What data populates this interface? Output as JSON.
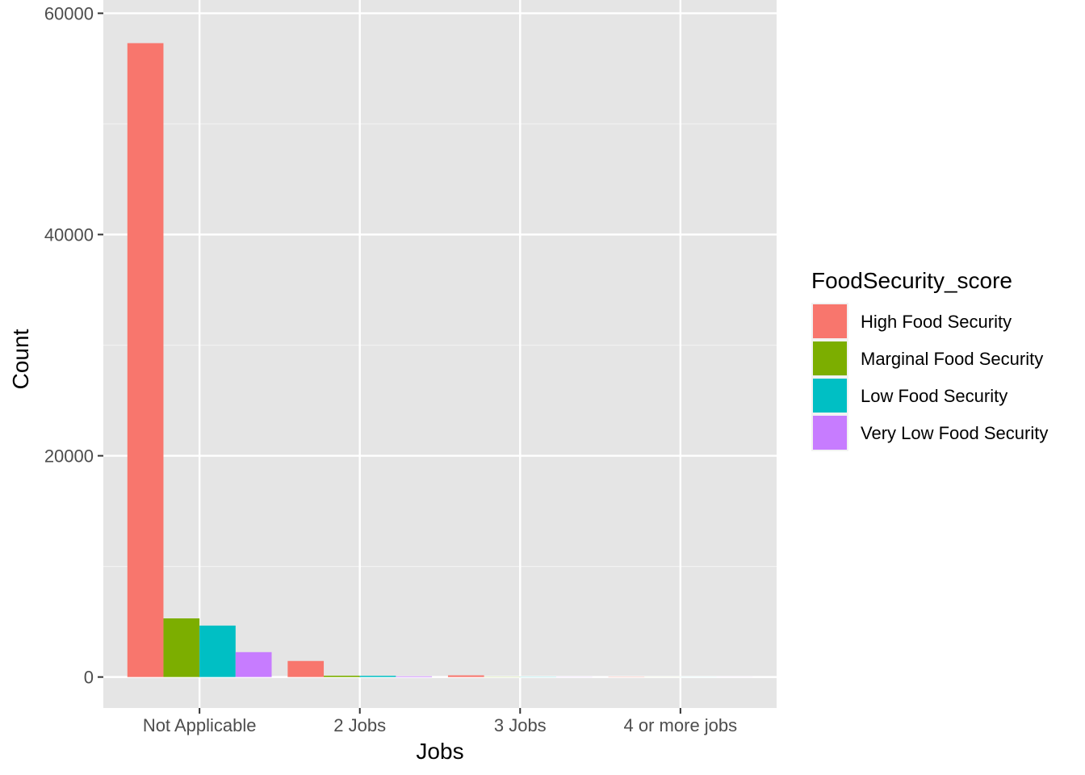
{
  "chart_data": {
    "type": "bar",
    "xlabel": "Jobs",
    "ylabel": "Count",
    "categories": [
      "Not Applicable",
      "2 Jobs",
      "3 Jobs",
      "4 or more jobs"
    ],
    "ylim": [
      -2800,
      61200
    ],
    "yticks": [
      0,
      20000,
      40000,
      60000
    ],
    "grid": true,
    "legend": {
      "title": "FoodSecurity_score",
      "position": "right"
    },
    "series": [
      {
        "name": "High Food Security",
        "color": "#F8766D",
        "values": [
          57300,
          1450,
          150,
          20
        ]
      },
      {
        "name": "Marginal Food Security",
        "color": "#7CAE00",
        "values": [
          5300,
          120,
          15,
          5
        ]
      },
      {
        "name": "Low Food Security",
        "color": "#00BFC4",
        "values": [
          4650,
          110,
          15,
          5
        ]
      },
      {
        "name": "Very Low Food Security",
        "color": "#C77CFF",
        "values": [
          2250,
          60,
          10,
          5
        ]
      }
    ]
  }
}
